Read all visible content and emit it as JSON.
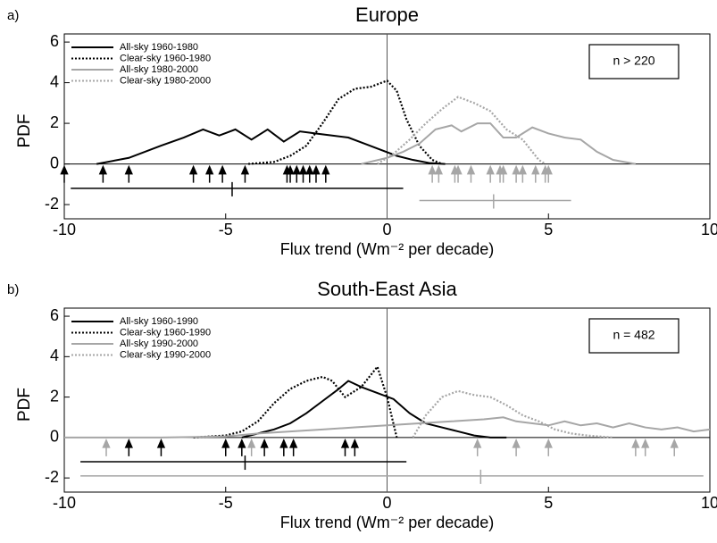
{
  "chart_data": [
    {
      "type": "line",
      "panel_label": "a)",
      "title": "Europe",
      "ylabel": "PDF",
      "xlabel": "Flux trend (Wm⁻² per decade)",
      "annotation": "n > 220",
      "xlim": [
        -10,
        10
      ],
      "ylim": [
        -2.7,
        6.4
      ],
      "xticks": [
        -10,
        -5,
        0,
        5,
        10
      ],
      "yticks": [
        -2,
        0,
        2,
        4,
        6
      ],
      "legend": "upper left",
      "series": [
        {
          "name": "All-sky 1960-1980",
          "color": "#000000",
          "style": "solid",
          "x": [
            -9,
            -8,
            -7,
            -6.3,
            -5.7,
            -5.2,
            -4.7,
            -4.2,
            -3.7,
            -3.2,
            -2.7,
            -2.2,
            -1.7,
            -1.2,
            -0.7,
            -0.2,
            0.3,
            0.8,
            1.3,
            1.8
          ],
          "values": [
            0,
            0.3,
            0.9,
            1.3,
            1.7,
            1.4,
            1.7,
            1.2,
            1.7,
            1.1,
            1.6,
            1.5,
            1.4,
            1.3,
            1.0,
            0.7,
            0.4,
            0.2,
            0.05,
            0
          ]
        },
        {
          "name": "Clear-sky 1960-1980",
          "color": "#000000",
          "style": "dotted",
          "x": [
            -4.3,
            -3.5,
            -3,
            -2.5,
            -2,
            -1.5,
            -1,
            -0.5,
            0,
            0.3,
            0.6,
            1,
            1.4,
            1.7
          ],
          "values": [
            0,
            0.1,
            0.4,
            0.9,
            2,
            3.2,
            3.7,
            3.8,
            4.1,
            3.6,
            2.2,
            0.9,
            0.2,
            0
          ]
        },
        {
          "name": "All-sky 1980-2000",
          "color": "#a6a6a6",
          "style": "solid",
          "x": [
            -0.8,
            0,
            0.5,
            1,
            1.5,
            2,
            2.3,
            2.8,
            3.2,
            3.6,
            4,
            4.5,
            5,
            5.5,
            6,
            6.5,
            7,
            7.7
          ],
          "values": [
            0,
            0.3,
            0.6,
            1.0,
            1.7,
            1.9,
            1.6,
            2.0,
            2.0,
            1.3,
            1.3,
            1.8,
            1.5,
            1.3,
            1.2,
            0.6,
            0.2,
            0
          ]
        },
        {
          "name": "Clear-sky 1980-2000",
          "color": "#a6a6a6",
          "style": "dotted",
          "x": [
            -0.3,
            0.2,
            0.7,
            1.2,
            1.7,
            2.2,
            2.7,
            3.2,
            3.7,
            4.2,
            4.7,
            4.9
          ],
          "values": [
            0,
            0.5,
            1.2,
            2.0,
            2.7,
            3.3,
            3.0,
            2.6,
            1.7,
            1.2,
            0.2,
            0
          ]
        }
      ],
      "arrows": [
        {
          "color": "#000000",
          "x": [
            -10,
            -8.8,
            -8.0,
            -6.0,
            -5.5,
            -5.1,
            -4.4,
            -3.1,
            -3.0,
            -2.8,
            -2.6,
            -2.4,
            -2.2,
            -1.9
          ]
        },
        {
          "color": "#a6a6a6",
          "x": [
            1.4,
            1.6,
            2.1,
            2.2,
            2.6,
            3.2,
            3.5,
            3.6,
            4.0,
            4.2,
            4.6,
            4.9,
            5.0
          ]
        }
      ],
      "ranges": [
        {
          "color": "#000000",
          "y": -1.2,
          "from": -9.8,
          "to": 0.5,
          "mean": -4.8
        },
        {
          "color": "#a6a6a6",
          "y": -1.8,
          "from": 1.0,
          "to": 5.7,
          "mean": 3.3
        }
      ]
    },
    {
      "type": "line",
      "panel_label": "b)",
      "title": "South-East Asia",
      "ylabel": "PDF",
      "xlabel": "Flux trend (Wm⁻² per decade)",
      "annotation": "n = 482",
      "xlim": [
        -10,
        10
      ],
      "ylim": [
        -2.7,
        6.4
      ],
      "xticks": [
        -10,
        -5,
        0,
        5,
        10
      ],
      "yticks": [
        -2,
        0,
        2,
        4,
        6
      ],
      "legend": "upper left",
      "series": [
        {
          "name": "All-sky 1960-1990",
          "color": "#000000",
          "style": "solid",
          "x": [
            -4.5,
            -4,
            -3.5,
            -3,
            -2.5,
            -2,
            -1.5,
            -1.2,
            -0.8,
            -0.3,
            0.2,
            0.7,
            1.2,
            1.7,
            2.2,
            2.7,
            3.2,
            3.7
          ],
          "values": [
            0,
            0.2,
            0.4,
            0.7,
            1.2,
            1.8,
            2.4,
            2.8,
            2.5,
            2.2,
            1.9,
            1.2,
            0.7,
            0.5,
            0.3,
            0.1,
            0,
            0
          ]
        },
        {
          "name": "Clear-sky 1960-1990",
          "color": "#000000",
          "style": "dotted",
          "x": [
            -6,
            -5,
            -4.5,
            -4,
            -3.5,
            -3,
            -2.5,
            -2,
            -1.7,
            -1.3,
            -0.8,
            -0.3,
            0,
            0.3
          ],
          "values": [
            0,
            0.1,
            0.3,
            0.8,
            1.7,
            2.4,
            2.8,
            3.0,
            2.8,
            2.0,
            2.5,
            3.5,
            2.0,
            0
          ]
        },
        {
          "name": "All-sky 1990-2000",
          "color": "#a6a6a6",
          "style": "solid",
          "x": [
            -10,
            -7,
            -5,
            -4,
            -3,
            -2,
            -1,
            0,
            1,
            2,
            3,
            3.6,
            4,
            4.5,
            5,
            5.5,
            6,
            6.5,
            7,
            7.5,
            8,
            8.5,
            9,
            9.5,
            10
          ],
          "values": [
            0,
            0,
            0.05,
            0.2,
            0.3,
            0.4,
            0.5,
            0.6,
            0.7,
            0.8,
            0.9,
            1.0,
            0.8,
            0.7,
            0.6,
            0.8,
            0.6,
            0.7,
            0.5,
            0.7,
            0.5,
            0.4,
            0.5,
            0.3,
            0.4
          ]
        },
        {
          "name": "Clear-sky 1990-2000",
          "color": "#a6a6a6",
          "style": "dotted",
          "x": [
            0.8,
            1.2,
            1.7,
            2.2,
            2.7,
            3.2,
            3.7,
            4.2,
            4.7,
            5.2,
            5.7,
            6.2,
            7
          ],
          "values": [
            0,
            1.1,
            2.0,
            2.3,
            2.1,
            2.0,
            1.6,
            1.1,
            0.8,
            0.4,
            0.2,
            0.1,
            0
          ]
        }
      ],
      "arrows": [
        {
          "color": "#000000",
          "x": [
            -8,
            -7,
            -5,
            -4.5,
            -3.8,
            -3.2,
            -2.9,
            -1.3,
            -1
          ]
        },
        {
          "color": "#a6a6a6",
          "x": [
            -8.7,
            -4.2,
            2.8,
            4,
            5,
            7.7,
            8,
            8.9
          ]
        }
      ],
      "ranges": [
        {
          "color": "#000000",
          "y": -1.2,
          "from": -9.5,
          "to": 0.6,
          "mean": -4.4
        },
        {
          "color": "#a6a6a6",
          "y": -1.9,
          "from": -9.5,
          "to": 9.8,
          "mean": 2.9
        }
      ]
    }
  ]
}
